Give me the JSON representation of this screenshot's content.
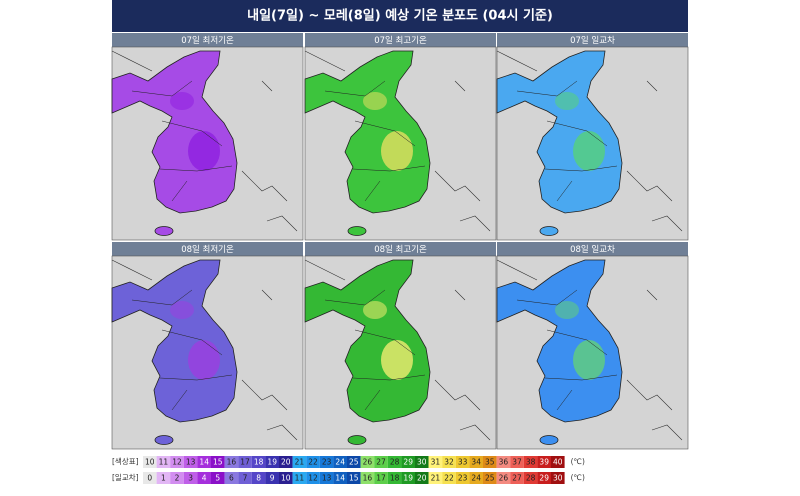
{
  "header": {
    "title": "내일(7일) ~ 모레(8일) 예상 기온 분포도 (04시 기준)"
  },
  "panels": [
    {
      "label": "07일 최저기온"
    },
    {
      "label": "07일 최고기온"
    },
    {
      "label": "07일 일교차"
    },
    {
      "label": "08일 최저기온"
    },
    {
      "label": "08일 최고기온"
    },
    {
      "label": "08일 일교차"
    }
  ],
  "legend": {
    "rows": [
      {
        "label": "[색상표]",
        "cells": [
          10,
          11,
          12,
          13,
          14,
          15,
          16,
          17,
          18,
          19,
          20,
          21,
          22,
          23,
          24,
          25,
          26,
          27,
          28,
          29,
          30,
          31,
          32,
          33,
          34,
          35,
          36,
          37,
          38,
          39,
          40
        ],
        "unit": "(℃)"
      },
      {
        "label": "[일교차]",
        "cells": [
          0,
          1,
          2,
          3,
          4,
          5,
          6,
          7,
          8,
          9,
          10,
          11,
          12,
          13,
          14,
          15,
          16,
          17,
          18,
          19,
          20,
          21,
          22,
          23,
          24,
          25,
          26,
          27,
          28,
          29,
          30
        ],
        "unit": "(℃)"
      }
    ]
  }
}
